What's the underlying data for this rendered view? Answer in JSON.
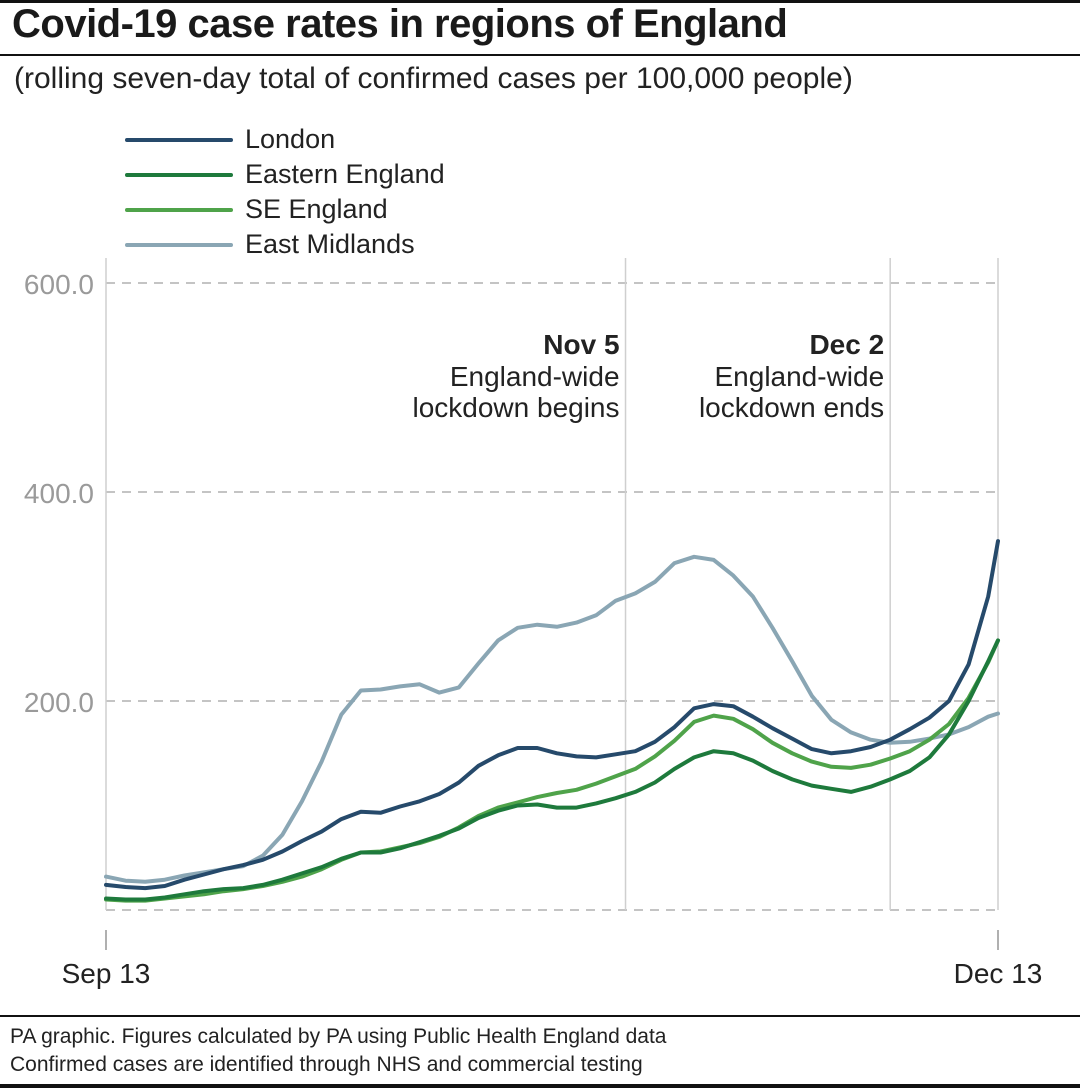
{
  "title": "Covid-19 case rates in regions of England",
  "subtitle": "(rolling seven-day total of confirmed cases per 100,000 people)",
  "footer": {
    "line1": "PA graphic. Figures calculated by PA using Public Health England data",
    "line2": "Confirmed cases are identified through NHS and commercial testing"
  },
  "chart_data": {
    "type": "line",
    "title": "Covid-19 case rates in regions of England",
    "ylabel": "rolling seven-day total of confirmed cases per 100,000 people",
    "xlabel": "",
    "x_start_day": 0,
    "x_end_day": 91,
    "x_tick_labels": [
      {
        "day": 0,
        "label": "Sep 13"
      },
      {
        "day": 91,
        "label": "Dec 13"
      }
    ],
    "ylim": [
      0,
      600
    ],
    "y_ticks": [
      {
        "value": 200,
        "label": "200.0"
      },
      {
        "value": 400,
        "label": "400.0"
      },
      {
        "value": 600,
        "label": "600.0"
      }
    ],
    "grid": true,
    "legend_position": "top-left",
    "annotations": [
      {
        "day": 53,
        "date": "Nov 5",
        "line1": "England-wide",
        "line2": "lockdown begins"
      },
      {
        "day": 80,
        "date": "Dec 2",
        "line1": "England-wide",
        "line2": "lockdown ends"
      }
    ],
    "series": [
      {
        "name": "London",
        "color": "#264a6b",
        "points": [
          [
            0,
            24
          ],
          [
            2,
            22
          ],
          [
            4,
            21
          ],
          [
            6,
            23
          ],
          [
            8,
            29
          ],
          [
            10,
            34
          ],
          [
            12,
            39
          ],
          [
            14,
            43
          ],
          [
            16,
            48
          ],
          [
            18,
            56
          ],
          [
            20,
            66
          ],
          [
            22,
            75
          ],
          [
            24,
            87
          ],
          [
            26,
            94
          ],
          [
            28,
            93
          ],
          [
            30,
            99
          ],
          [
            32,
            104
          ],
          [
            34,
            111
          ],
          [
            36,
            122
          ],
          [
            38,
            138
          ],
          [
            40,
            148
          ],
          [
            42,
            155
          ],
          [
            44,
            155
          ],
          [
            46,
            150
          ],
          [
            48,
            147
          ],
          [
            50,
            146
          ],
          [
            52,
            149
          ],
          [
            54,
            152
          ],
          [
            56,
            161
          ],
          [
            58,
            175
          ],
          [
            60,
            193
          ],
          [
            62,
            197
          ],
          [
            64,
            195
          ],
          [
            66,
            185
          ],
          [
            68,
            174
          ],
          [
            70,
            164
          ],
          [
            72,
            154
          ],
          [
            74,
            150
          ],
          [
            76,
            152
          ],
          [
            78,
            156
          ],
          [
            80,
            163
          ],
          [
            82,
            173
          ],
          [
            84,
            184
          ],
          [
            86,
            200
          ],
          [
            88,
            235
          ],
          [
            90,
            300
          ],
          [
            91,
            353
          ]
        ]
      },
      {
        "name": "Eastern England",
        "color": "#1e7a3c",
        "points": [
          [
            0,
            11
          ],
          [
            2,
            10
          ],
          [
            4,
            10
          ],
          [
            6,
            12
          ],
          [
            8,
            15
          ],
          [
            10,
            18
          ],
          [
            12,
            20
          ],
          [
            14,
            21
          ],
          [
            16,
            24
          ],
          [
            18,
            29
          ],
          [
            20,
            35
          ],
          [
            22,
            41
          ],
          [
            24,
            49
          ],
          [
            26,
            55
          ],
          [
            28,
            55
          ],
          [
            30,
            59
          ],
          [
            32,
            65
          ],
          [
            34,
            71
          ],
          [
            36,
            78
          ],
          [
            38,
            88
          ],
          [
            40,
            95
          ],
          [
            42,
            100
          ],
          [
            44,
            101
          ],
          [
            46,
            98
          ],
          [
            48,
            98
          ],
          [
            50,
            102
          ],
          [
            52,
            107
          ],
          [
            54,
            113
          ],
          [
            56,
            122
          ],
          [
            58,
            135
          ],
          [
            60,
            146
          ],
          [
            62,
            152
          ],
          [
            64,
            150
          ],
          [
            66,
            143
          ],
          [
            68,
            133
          ],
          [
            70,
            125
          ],
          [
            72,
            119
          ],
          [
            74,
            116
          ],
          [
            76,
            113
          ],
          [
            78,
            118
          ],
          [
            80,
            125
          ],
          [
            82,
            133
          ],
          [
            84,
            146
          ],
          [
            86,
            168
          ],
          [
            88,
            200
          ],
          [
            90,
            238
          ],
          [
            91,
            258
          ]
        ]
      },
      {
        "name": "SE England",
        "color": "#4fa34a",
        "points": [
          [
            0,
            10
          ],
          [
            2,
            9
          ],
          [
            4,
            9
          ],
          [
            6,
            11
          ],
          [
            8,
            13
          ],
          [
            10,
            15
          ],
          [
            12,
            18
          ],
          [
            14,
            20
          ],
          [
            16,
            23
          ],
          [
            18,
            27
          ],
          [
            20,
            32
          ],
          [
            22,
            39
          ],
          [
            24,
            48
          ],
          [
            26,
            55
          ],
          [
            28,
            56
          ],
          [
            30,
            60
          ],
          [
            32,
            64
          ],
          [
            34,
            70
          ],
          [
            36,
            79
          ],
          [
            38,
            90
          ],
          [
            40,
            98
          ],
          [
            42,
            103
          ],
          [
            44,
            108
          ],
          [
            46,
            112
          ],
          [
            48,
            115
          ],
          [
            50,
            121
          ],
          [
            52,
            128
          ],
          [
            54,
            135
          ],
          [
            56,
            147
          ],
          [
            58,
            162
          ],
          [
            60,
            180
          ],
          [
            62,
            186
          ],
          [
            64,
            183
          ],
          [
            66,
            173
          ],
          [
            68,
            160
          ],
          [
            70,
            150
          ],
          [
            72,
            142
          ],
          [
            74,
            137
          ],
          [
            76,
            136
          ],
          [
            78,
            139
          ],
          [
            80,
            145
          ],
          [
            82,
            152
          ],
          [
            84,
            163
          ],
          [
            86,
            178
          ],
          [
            88,
            203
          ],
          [
            90,
            237
          ],
          [
            91,
            258
          ]
        ]
      },
      {
        "name": "East Midlands",
        "color": "#8aa6b4",
        "points": [
          [
            0,
            32
          ],
          [
            2,
            28
          ],
          [
            4,
            27
          ],
          [
            6,
            29
          ],
          [
            8,
            33
          ],
          [
            10,
            36
          ],
          [
            12,
            39
          ],
          [
            14,
            42
          ],
          [
            16,
            52
          ],
          [
            18,
            72
          ],
          [
            20,
            104
          ],
          [
            22,
            142
          ],
          [
            24,
            187
          ],
          [
            26,
            210
          ],
          [
            28,
            211
          ],
          [
            30,
            214
          ],
          [
            32,
            216
          ],
          [
            34,
            208
          ],
          [
            36,
            213
          ],
          [
            38,
            236
          ],
          [
            40,
            258
          ],
          [
            42,
            270
          ],
          [
            44,
            273
          ],
          [
            46,
            271
          ],
          [
            48,
            275
          ],
          [
            50,
            282
          ],
          [
            52,
            296
          ],
          [
            54,
            303
          ],
          [
            56,
            314
          ],
          [
            58,
            332
          ],
          [
            60,
            338
          ],
          [
            62,
            335
          ],
          [
            64,
            320
          ],
          [
            66,
            300
          ],
          [
            68,
            270
          ],
          [
            70,
            238
          ],
          [
            72,
            205
          ],
          [
            74,
            182
          ],
          [
            76,
            170
          ],
          [
            78,
            163
          ],
          [
            80,
            160
          ],
          [
            82,
            161
          ],
          [
            84,
            164
          ],
          [
            86,
            168
          ],
          [
            88,
            175
          ],
          [
            90,
            185
          ],
          [
            91,
            188
          ]
        ]
      }
    ]
  }
}
